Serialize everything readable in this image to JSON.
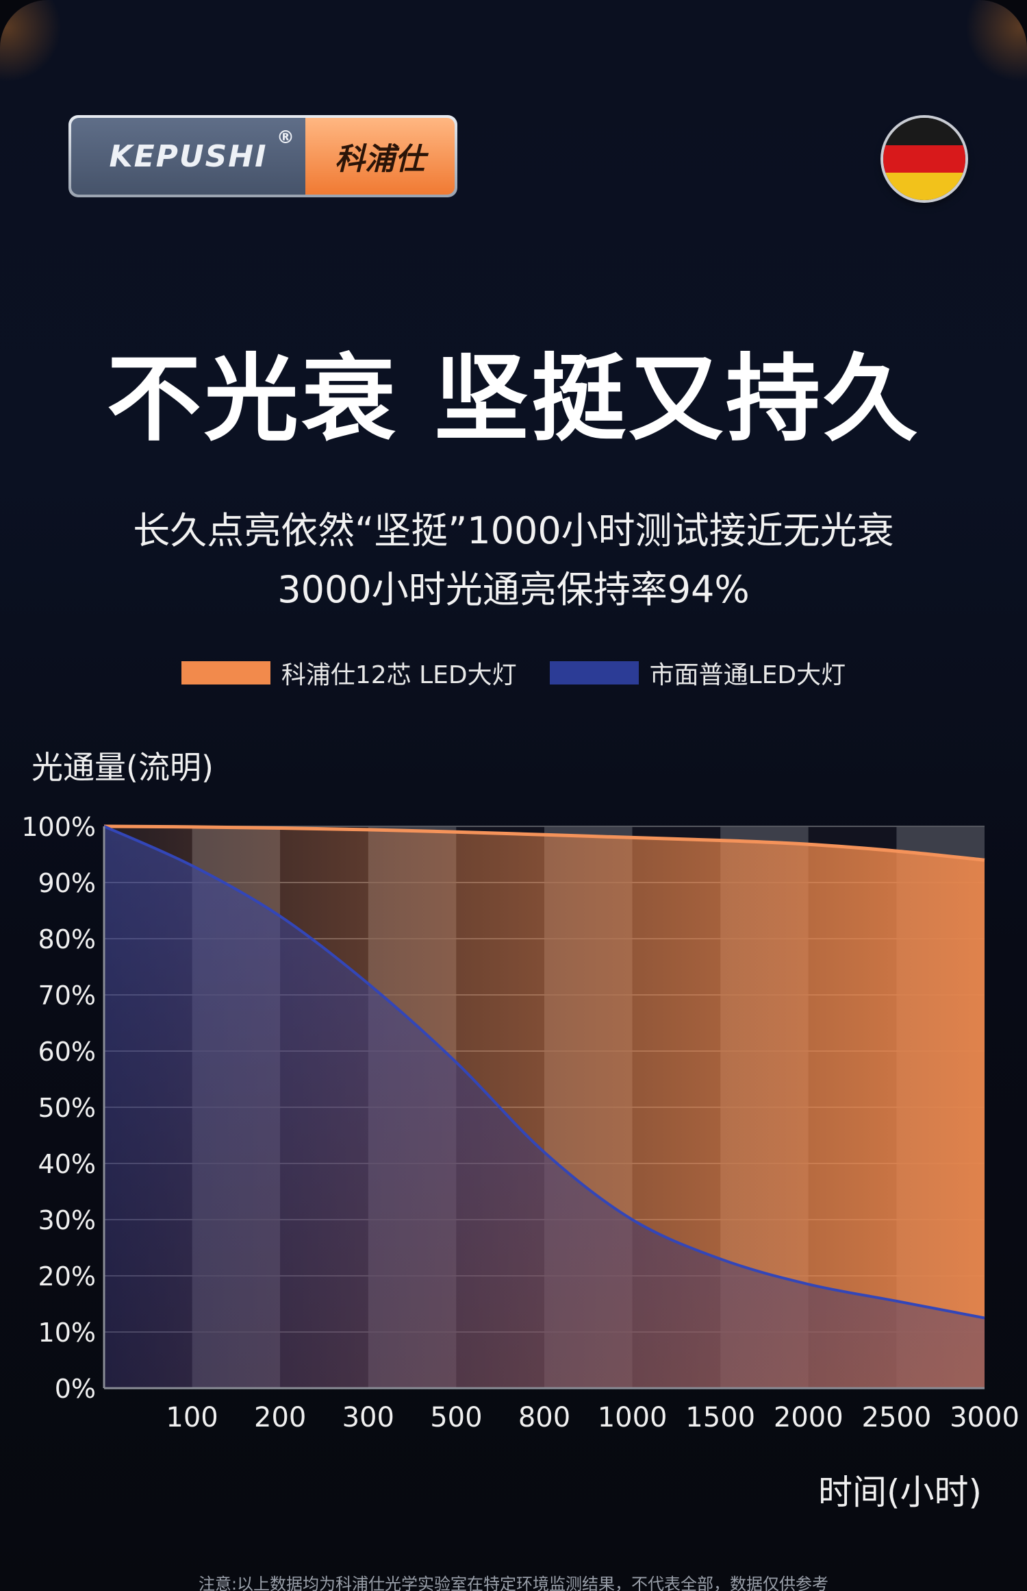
{
  "brand": {
    "logo_en": "KEPUSHI",
    "logo_reg": "®",
    "logo_cn": "科浦仕"
  },
  "flag": {
    "colors": [
      "#1a1a1a",
      "#d8191b",
      "#f2c21b"
    ]
  },
  "headline": "不光衰 坚挺又持久",
  "subline1": "长久点亮依然“坚挺”1000小时测试接近无光衰",
  "subline2": "3000小时光通亮保持率94%",
  "footnote": "注意:以上数据均为科浦仕光学实验室在特定环境监测结果，不代表全部，数据仅供参考",
  "chart_data": {
    "type": "area",
    "ylabel": "光通量(流明)",
    "xlabel": "时间(小时)",
    "x_ticks": [
      "100",
      "200",
      "300",
      "500",
      "800",
      "1000",
      "1500",
      "2000",
      "2500",
      "3000"
    ],
    "y_ticks": [
      "100%",
      "90%",
      "80%",
      "70%",
      "60%",
      "50%",
      "40%",
      "30%",
      "20%",
      "10%",
      "0%"
    ],
    "ylim": [
      0,
      100
    ],
    "grid": true,
    "legend_position": "top-center",
    "series": [
      {
        "name": "科浦仕12芯 LED大灯",
        "color": "#f28a4c",
        "values": [
          100,
          99.9,
          99.7,
          99.4,
          99.0,
          98.5,
          98.0,
          97.5,
          96.8,
          95.6,
          94.0
        ]
      },
      {
        "name": "市面普通LED大灯",
        "color": "#2c3c96",
        "values": [
          100,
          93,
          84,
          72,
          58,
          42,
          30,
          23,
          18.5,
          15.5,
          12.5
        ]
      }
    ]
  }
}
